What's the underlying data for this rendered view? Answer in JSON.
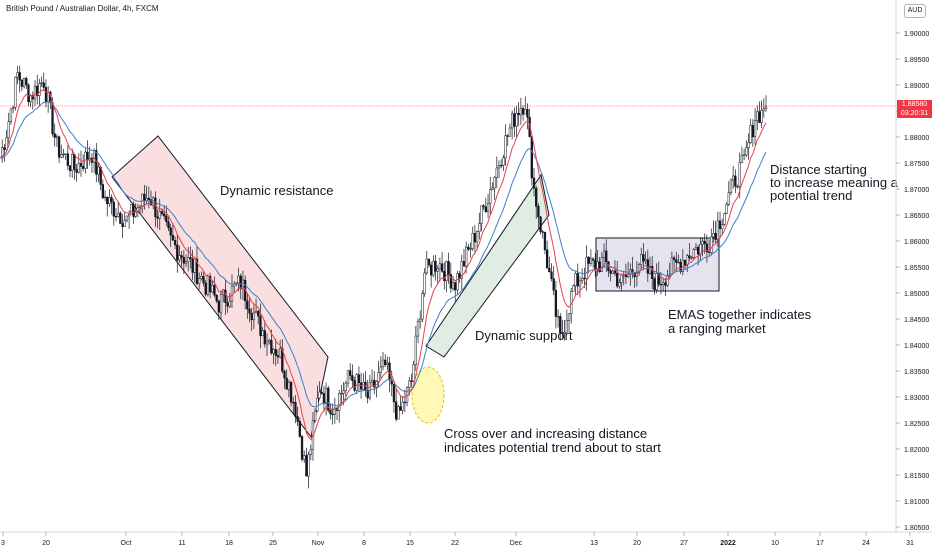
{
  "header": {
    "symbol_title": "British Pound / Australian Dollar, 4h, FXCM",
    "currency_badge": "AUD"
  },
  "price_marker": {
    "price": "1.88580",
    "countdown": "03:20:31",
    "color": "#f23645"
  },
  "colors": {
    "ema_fast": "#e8414d",
    "ema_slow": "#3f7fc7",
    "resistance_fill": "#f5c9cc",
    "support_fill": "#d3e6d5",
    "range_fill": "#dcd7e8",
    "crossover_fill": "#fff59d",
    "candle": "#131722"
  },
  "chart_data": {
    "type": "candlestick",
    "timeframe": "4h",
    "y_axis": {
      "min": 1.805,
      "max": 1.905,
      "ticks": [
        "1.90000",
        "1.89500",
        "1.89000",
        "1.88500",
        "1.88000",
        "1.87500",
        "1.87000",
        "1.86500",
        "1.86000",
        "1.85500",
        "1.85000",
        "1.84500",
        "1.84000",
        "1.83500",
        "1.83000",
        "1.82500",
        "1.82000",
        "1.81500",
        "1.81000",
        "1.80500"
      ]
    },
    "x_axis": {
      "ticks": [
        "3",
        "20",
        "Oct",
        "11",
        "18",
        "25",
        "Nov",
        "8",
        "15",
        "22",
        "Dec",
        "13",
        "20",
        "27",
        "2022",
        "10",
        "17",
        "24",
        "31"
      ]
    },
    "price_path": [
      [
        0,
        1.876
      ],
      [
        3,
        1.881
      ],
      [
        8,
        1.892
      ],
      [
        14,
        1.888
      ],
      [
        20,
        1.891
      ],
      [
        26,
        1.878
      ],
      [
        34,
        1.874
      ],
      [
        42,
        1.877
      ],
      [
        48,
        1.868
      ],
      [
        58,
        1.864
      ],
      [
        68,
        1.869
      ],
      [
        78,
        1.86
      ],
      [
        90,
        1.854
      ],
      [
        100,
        1.848
      ],
      [
        110,
        1.852
      ],
      [
        118,
        1.844
      ],
      [
        128,
        1.838
      ],
      [
        135,
        1.828
      ],
      [
        140,
        1.815
      ],
      [
        146,
        1.832
      ],
      [
        152,
        1.828
      ],
      [
        160,
        1.834
      ],
      [
        168,
        1.83
      ],
      [
        176,
        1.836
      ],
      [
        182,
        1.826
      ],
      [
        188,
        1.833
      ],
      [
        194,
        1.854
      ],
      [
        200,
        1.856
      ],
      [
        208,
        1.852
      ],
      [
        216,
        1.86
      ],
      [
        224,
        1.87
      ],
      [
        230,
        1.878
      ],
      [
        236,
        1.885
      ],
      [
        240,
        1.887
      ],
      [
        244,
        1.87
      ],
      [
        250,
        1.856
      ],
      [
        256,
        1.841
      ],
      [
        262,
        1.851
      ],
      [
        268,
        1.855
      ],
      [
        276,
        1.856
      ],
      [
        284,
        1.852
      ],
      [
        292,
        1.856
      ],
      [
        300,
        1.852
      ],
      [
        308,
        1.855
      ],
      [
        316,
        1.858
      ],
      [
        324,
        1.86
      ],
      [
        330,
        1.865
      ],
      [
        336,
        1.872
      ],
      [
        340,
        1.875
      ],
      [
        345,
        1.884
      ],
      [
        350,
        1.8858
      ]
    ],
    "annotations": {
      "dynamic_resistance": "Dynamic resistance",
      "dynamic_support": "Dynamic support",
      "crossover": [
        "Cross over and increasing distance",
        "indicates potential trend about to start"
      ],
      "ranging": [
        "EMAS together indicates",
        "a ranging market"
      ],
      "trend": [
        "Distance starting",
        "to increase meaning a",
        "potential trend"
      ]
    }
  }
}
